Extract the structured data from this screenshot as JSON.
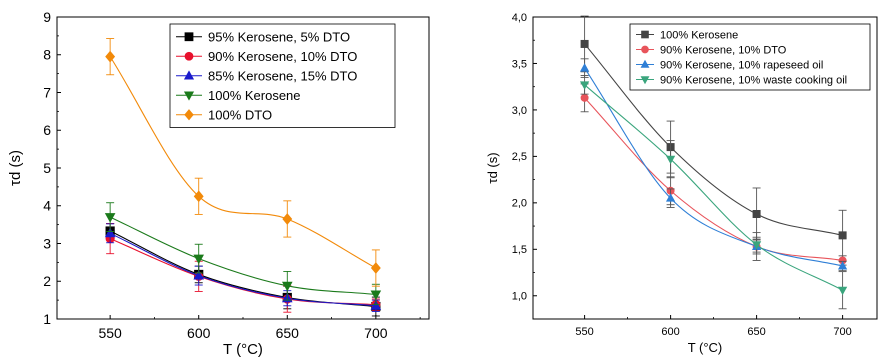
{
  "chart_data": [
    {
      "type": "scatter",
      "xlabel": "T (°C)",
      "ylabel": "τd (s)",
      "xlim": [
        520,
        730
      ],
      "ylim": [
        1,
        9
      ],
      "x_ticks": [
        "550",
        "600",
        "650",
        "700"
      ],
      "y_ticks": [
        "1",
        "2",
        "3",
        "4",
        "5",
        "6",
        "7",
        "8",
        "9"
      ],
      "legend_position": "top-right",
      "series": [
        {
          "name": "95% Kerosene, 5% DTO",
          "marker": "square",
          "color": "#000000",
          "x": [
            550,
            600,
            650,
            700
          ],
          "y": [
            3.33,
            2.18,
            1.57,
            1.33
          ],
          "err": [
            0.2,
            0.22,
            0.3,
            0.25
          ]
        },
        {
          "name": "90% Kerosene, 10% DTO",
          "marker": "circle",
          "color": "#e8112d",
          "x": [
            550,
            600,
            650,
            700
          ],
          "y": [
            3.13,
            2.13,
            1.53,
            1.38
          ],
          "err": [
            0.4,
            0.4,
            0.35,
            0.15
          ]
        },
        {
          "name": "85% Kerosene, 15% DTO",
          "marker": "triangle-up",
          "color": "#1a1acc",
          "x": [
            550,
            600,
            650,
            700
          ],
          "y": [
            3.27,
            2.15,
            1.55,
            1.35
          ],
          "err": [
            0.25,
            0.25,
            0.2,
            0.15
          ]
        },
        {
          "name": "100% Kerosene",
          "marker": "triangle-down",
          "color": "#1b7a1b",
          "x": [
            550,
            600,
            650,
            700
          ],
          "y": [
            3.7,
            2.6,
            1.88,
            1.65
          ],
          "err": [
            0.38,
            0.38,
            0.38,
            0.27
          ]
        },
        {
          "name": "100% DTO",
          "marker": "diamond",
          "color": "#f28a0a",
          "x": [
            550,
            600,
            650,
            700
          ],
          "y": [
            7.95,
            4.25,
            3.65,
            2.35
          ],
          "err": [
            0.48,
            0.48,
            0.48,
            0.48
          ]
        }
      ]
    },
    {
      "type": "scatter",
      "xlabel": "T (°C)",
      "ylabel": "τd (s)",
      "xlim": [
        520,
        720
      ],
      "ylim": [
        0.75,
        4.0
      ],
      "x_ticks": [
        "550",
        "600",
        "650",
        "700"
      ],
      "y_ticks": [
        "1,0",
        "1,5",
        "2,0",
        "2,5",
        "3,0",
        "3,5",
        "4,0"
      ],
      "legend_position": "top-right",
      "series": [
        {
          "name": "100% Kerosene",
          "marker": "square",
          "color": "#444444",
          "x": [
            550,
            600,
            650,
            700
          ],
          "y": [
            3.71,
            2.6,
            1.88,
            1.65
          ],
          "err": [
            0.3,
            0.28,
            0.28,
            0.27
          ]
        },
        {
          "name": "90% Kerosene, 10% DTO",
          "marker": "circle",
          "color": "#e8545b",
          "x": [
            550,
            600,
            650,
            700
          ],
          "y": [
            3.13,
            2.13,
            1.53,
            1.38
          ],
          "err": [
            0.15,
            0.15,
            0.15,
            0.05
          ]
        },
        {
          "name": "90% Kerosene, 10% rapeseed oil",
          "marker": "triangle-up",
          "color": "#2f7fd6",
          "x": [
            550,
            600,
            650,
            700
          ],
          "y": [
            3.45,
            2.05,
            1.53,
            1.32
          ],
          "err": [
            0.1,
            0.1,
            0.08,
            0.05
          ]
        },
        {
          "name": "90% Kerosene, 10% waste cooking oil",
          "marker": "triangle-down",
          "color": "#3aa57d",
          "x": [
            550,
            600,
            650,
            700
          ],
          "y": [
            3.27,
            2.47,
            1.55,
            1.06
          ],
          "err": [
            0.1,
            0.2,
            0.08,
            0.2
          ]
        }
      ]
    }
  ]
}
